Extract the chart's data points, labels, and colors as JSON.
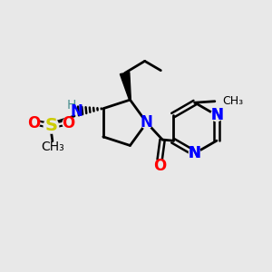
{
  "background_color": "#e8e8e8",
  "bond_color": "#000000",
  "N_color": "#0000ff",
  "O_color": "#ff0000",
  "S_color": "#cccc00",
  "H_color": "#4a9090",
  "figsize": [
    3.0,
    3.0
  ],
  "dpi": 100,
  "xlim": [
    0,
    10
  ],
  "ylim": [
    0,
    10
  ]
}
